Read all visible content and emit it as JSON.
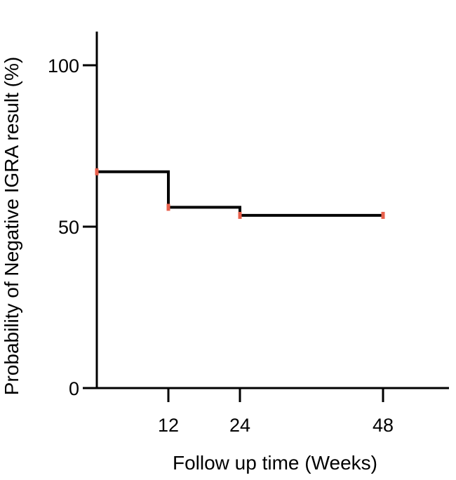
{
  "chart_data": {
    "type": "line",
    "step": true,
    "xlabel": "Follow up time (Weeks)",
    "ylabel": "Probability of Negative IGRA result (%)",
    "xlim": [
      0,
      60
    ],
    "ylim": [
      0,
      112
    ],
    "xticks": [
      12,
      24,
      48
    ],
    "yticks": [
      0,
      50,
      100
    ],
    "grid": false,
    "series": [
      {
        "color": "#000000",
        "x": [
          0,
          12,
          12,
          24,
          24,
          48
        ],
        "y": [
          67,
          67,
          56,
          56,
          53.5,
          53.5
        ]
      }
    ],
    "censor_marks": {
      "color": "#e8604c",
      "points": [
        {
          "x": 0,
          "y": 67
        },
        {
          "x": 12,
          "y": 56
        },
        {
          "x": 24,
          "y": 53.5
        },
        {
          "x": 48,
          "y": 53.5
        }
      ]
    }
  }
}
